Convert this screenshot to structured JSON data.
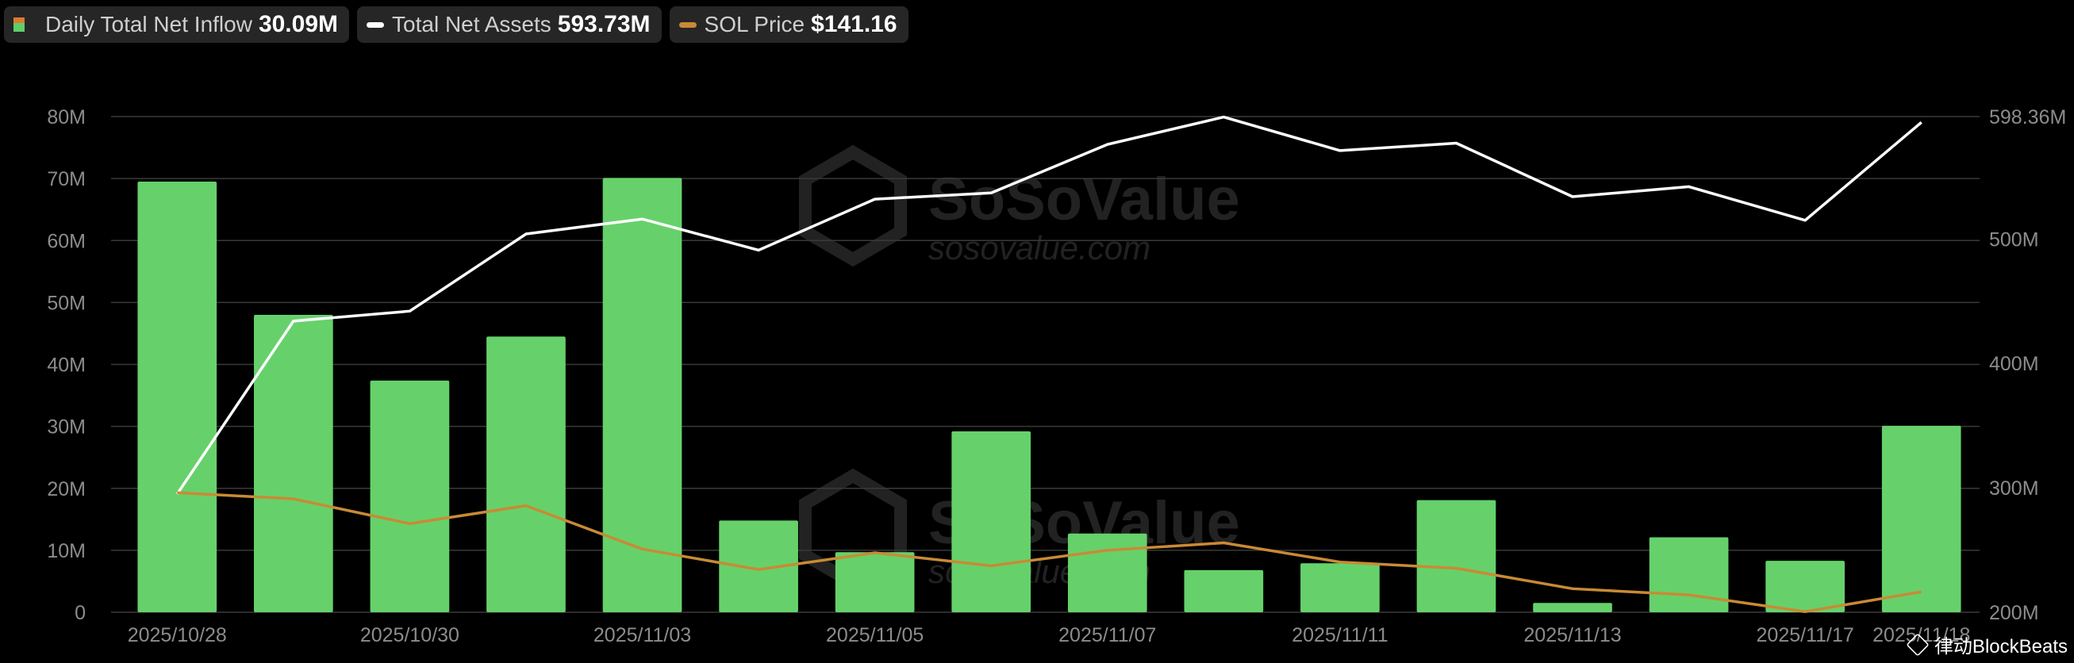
{
  "legend": {
    "inflow_label": "Daily Total Net Inflow",
    "inflow_value": "30.09M",
    "assets_label": "Total Net Assets",
    "assets_value": "593.73M",
    "price_label": "SOL Price",
    "price_value": "$141.16"
  },
  "watermark": {
    "brand": "SoSoValue",
    "site": "sosovalue.com"
  },
  "source": "律动BlockBeats",
  "colors": {
    "bar": "#66d16b",
    "assets_line": "#ffffff",
    "price_line": "#c98a35",
    "grid": "#3a3a3a",
    "axis_text": "#8c8c8c",
    "inflow_swatch_top": "#e07a2e"
  },
  "chart_data": {
    "type": "bar",
    "categories": [
      "2025/10/28",
      "",
      "2025/10/30",
      "",
      "2025/11/03",
      "",
      "2025/11/05",
      "",
      "2025/11/07",
      "",
      "2025/11/11",
      "",
      "2025/11/13",
      "",
      "2025/11/17",
      "2025/11/18"
    ],
    "x_tick_labels": [
      "2025/10/28",
      "2025/10/30",
      "2025/11/03",
      "2025/11/05",
      "2025/11/07",
      "2025/11/11",
      "2025/11/13",
      "2025/11/17",
      "2025/11/18"
    ],
    "x_tick_positions": [
      0,
      2,
      4,
      6,
      8,
      10,
      12,
      14,
      15
    ],
    "series": [
      {
        "name": "Daily Total Net Inflow",
        "type": "bar",
        "axis": "left",
        "values": [
          69.5,
          48,
          37.4,
          44.5,
          70.1,
          14.8,
          9.7,
          29.2,
          12.7,
          6.8,
          7.9,
          18.1,
          1.5,
          12.1,
          8.3,
          30.09
        ]
      },
      {
        "name": "Total Net Assets",
        "type": "line",
        "axis": "right",
        "values": [
          295,
          434,
          442,
          504,
          516,
          491,
          532,
          537,
          576,
          598,
          571,
          577,
          534,
          542,
          515,
          593.73
        ]
      },
      {
        "name": "SOL Price",
        "type": "line",
        "axis": "right_scaled",
        "values": [
          19.3,
          18.3,
          14.3,
          17.2,
          10.2,
          6.9,
          9.6,
          7.5,
          10.0,
          11.2,
          8.1,
          7.1,
          3.8,
          2.8,
          0.1,
          3.3
        ]
      }
    ],
    "left_axis": {
      "ticks": [
        "0",
        "10M",
        "20M",
        "30M",
        "40M",
        "50M",
        "60M",
        "70M",
        "80M"
      ],
      "ylim": [
        0,
        80
      ]
    },
    "right_axis": {
      "ticks": [
        "200M",
        "300M",
        "400M",
        "500M",
        "598.36M"
      ],
      "ylim": [
        200,
        598.36
      ]
    },
    "grid": true,
    "legend_position": "top-left"
  }
}
